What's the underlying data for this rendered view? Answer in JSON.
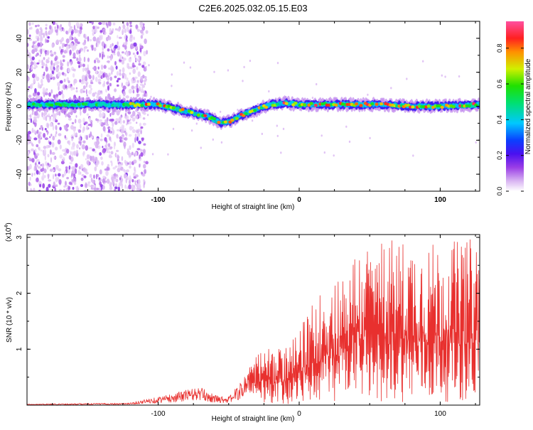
{
  "title": "C2E6.2025.032.05.15.E03",
  "colors": {
    "snr_line": "#e8302e",
    "axis": "#000000",
    "background": "#ffffff"
  },
  "chart_data": [
    {
      "type": "heatmap",
      "title": "C2E6.2025.032.05.15.E03",
      "xlabel": "Height of straight line (km)",
      "ylabel": "Frequency (Hz)",
      "xlim": [
        -193,
        128
      ],
      "ylim": [
        -50,
        50
      ],
      "x_ticks": [
        -100,
        0,
        100
      ],
      "y_ticks": [
        -40,
        -20,
        0,
        20,
        40
      ],
      "grid": false,
      "colorbar": {
        "label": "Normalized spectral amplitude",
        "range": [
          0,
          0.95
        ],
        "ticks": [
          0.0,
          0.2,
          0.4,
          0.6,
          0.8
        ],
        "colormap": "rainbow (white-purple-blue-cyan-green-yellow-red-pink)"
      },
      "ridge": {
        "description": "Main spectral ridge frequency vs height",
        "x": [
          -193,
          -120,
          -100,
          -85,
          -75,
          -65,
          -55,
          -50,
          -40,
          -30,
          -20,
          -10,
          0,
          20,
          40,
          60,
          80,
          100,
          128
        ],
        "y": [
          1,
          1,
          1,
          -2,
          -4,
          -6,
          -10,
          -9,
          -5,
          -2,
          1,
          2,
          1,
          1,
          1,
          1,
          0,
          0,
          1
        ]
      }
    },
    {
      "type": "line",
      "xlabel": "Height of straight line (km)",
      "ylabel": "SNR (10 * v/v)",
      "y_scale_label": "(x10",
      "y_scale_exponent": "4",
      "xlim": [
        -193,
        128
      ],
      "ylim": [
        0,
        3.05
      ],
      "x_ticks": [
        -100,
        0,
        100
      ],
      "y_ticks": [
        1,
        2,
        3
      ],
      "y_unit": "x10^4",
      "grid": false,
      "series": [
        {
          "envelope_x": [
            -193,
            -120,
            -110,
            -90,
            -80,
            -70,
            -60,
            -50,
            -40,
            -35,
            -30,
            -20,
            -10,
            0,
            10,
            20,
            30,
            40,
            60,
            80,
            100,
            128
          ],
          "envelope_y": [
            0.02,
            0.04,
            0.1,
            0.2,
            0.28,
            0.32,
            0.18,
            0.15,
            0.45,
            0.8,
            1.0,
            1.0,
            1.05,
            1.3,
            1.9,
            2.2,
            2.4,
            2.8,
            3.0,
            2.95,
            2.9,
            3.0
          ]
        }
      ]
    }
  ]
}
